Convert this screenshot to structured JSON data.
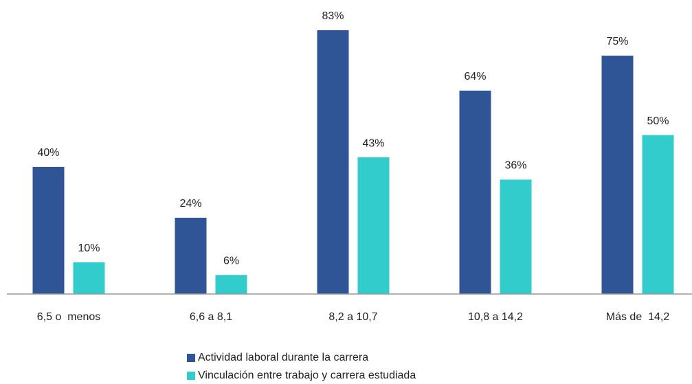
{
  "chart_data": {
    "type": "bar",
    "categories": [
      "6,5 o  menos",
      "6,6 a 8,1",
      "8,2 a 10,7",
      "10,8 a 14,2",
      "Más de  14,2"
    ],
    "series": [
      {
        "name": "Actividad laboral durante la carrera",
        "color": "#2f5597",
        "values": [
          40,
          24,
          83,
          64,
          75
        ],
        "value_labels": [
          "40%",
          "24%",
          "83%",
          "64%",
          "75%"
        ]
      },
      {
        "name": "Vinculación entre trabajo y carrera estudiada",
        "color": "#33cccc",
        "values": [
          10,
          6,
          43,
          36,
          50
        ],
        "value_labels": [
          "10%",
          "6%",
          "43%",
          "36%",
          "50%"
        ]
      }
    ]
  }
}
